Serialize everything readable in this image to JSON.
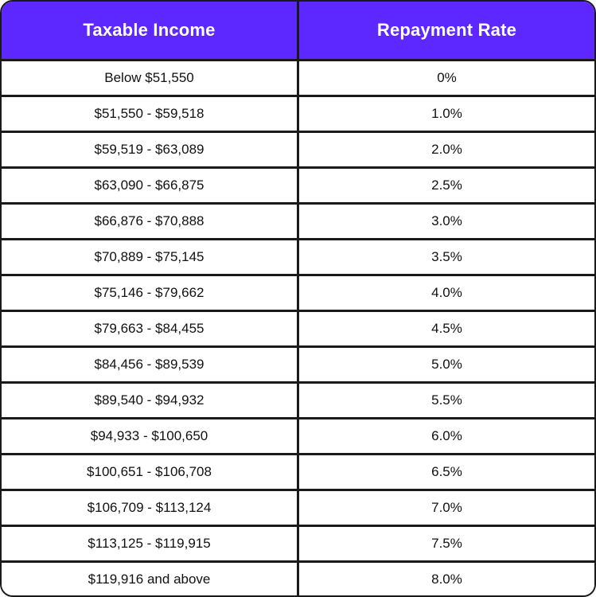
{
  "table": {
    "headers": [
      "Taxable Income",
      "Repayment Rate"
    ],
    "rows": [
      [
        "Below $51,550",
        "0%"
      ],
      [
        "$51,550 - $59,518",
        "1.0%"
      ],
      [
        "$59,519 - $63,089",
        "2.0%"
      ],
      [
        "$63,090 - $66,875",
        "2.5%"
      ],
      [
        "$66,876 - $70,888",
        "3.0%"
      ],
      [
        "$70,889 - $75,145",
        "3.5%"
      ],
      [
        "$75,146 - $79,662",
        "4.0%"
      ],
      [
        "$79,663 - $84,455",
        "4.5%"
      ],
      [
        "$84,456 - $89,539",
        "5.0%"
      ],
      [
        "$89,540 - $94,932",
        "5.5%"
      ],
      [
        "$94,933 - $100,650",
        "6.0%"
      ],
      [
        "$100,651 - $106,708",
        "6.5%"
      ],
      [
        "$106,709 - $113,124",
        "7.0%"
      ],
      [
        "$113,125 - $119,915",
        "7.5%"
      ],
      [
        "$119,916 and above",
        "8.0%"
      ]
    ]
  },
  "colors": {
    "header_bg": "#5d27ff",
    "header_text": "#ffffff",
    "border": "#1a1a1a",
    "row_bg": "#ffffff",
    "cell_text": "#111111"
  },
  "chart_data": {
    "type": "table",
    "title": "",
    "columns": [
      "Taxable Income",
      "Repayment Rate"
    ],
    "rows": [
      {
        "taxable_income": "Below $51,550",
        "repayment_rate_pct": 0
      },
      {
        "taxable_income": "$51,550 - $59,518",
        "repayment_rate_pct": 1.0
      },
      {
        "taxable_income": "$59,519 - $63,089",
        "repayment_rate_pct": 2.0
      },
      {
        "taxable_income": "$63,090 - $66,875",
        "repayment_rate_pct": 2.5
      },
      {
        "taxable_income": "$66,876 - $70,888",
        "repayment_rate_pct": 3.0
      },
      {
        "taxable_income": "$70,889 - $75,145",
        "repayment_rate_pct": 3.5
      },
      {
        "taxable_income": "$75,146 - $79,662",
        "repayment_rate_pct": 4.0
      },
      {
        "taxable_income": "$79,663 - $84,455",
        "repayment_rate_pct": 4.5
      },
      {
        "taxable_income": "$84,456 - $89,539",
        "repayment_rate_pct": 5.0
      },
      {
        "taxable_income": "$89,540 - $94,932",
        "repayment_rate_pct": 5.5
      },
      {
        "taxable_income": "$94,933 - $100,650",
        "repayment_rate_pct": 6.0
      },
      {
        "taxable_income": "$100,651 - $106,708",
        "repayment_rate_pct": 6.5
      },
      {
        "taxable_income": "$106,709 - $113,124",
        "repayment_rate_pct": 7.0
      },
      {
        "taxable_income": "$113,125 - $119,915",
        "repayment_rate_pct": 7.5
      },
      {
        "taxable_income": "$119,916 and above",
        "repayment_rate_pct": 8.0
      }
    ]
  }
}
